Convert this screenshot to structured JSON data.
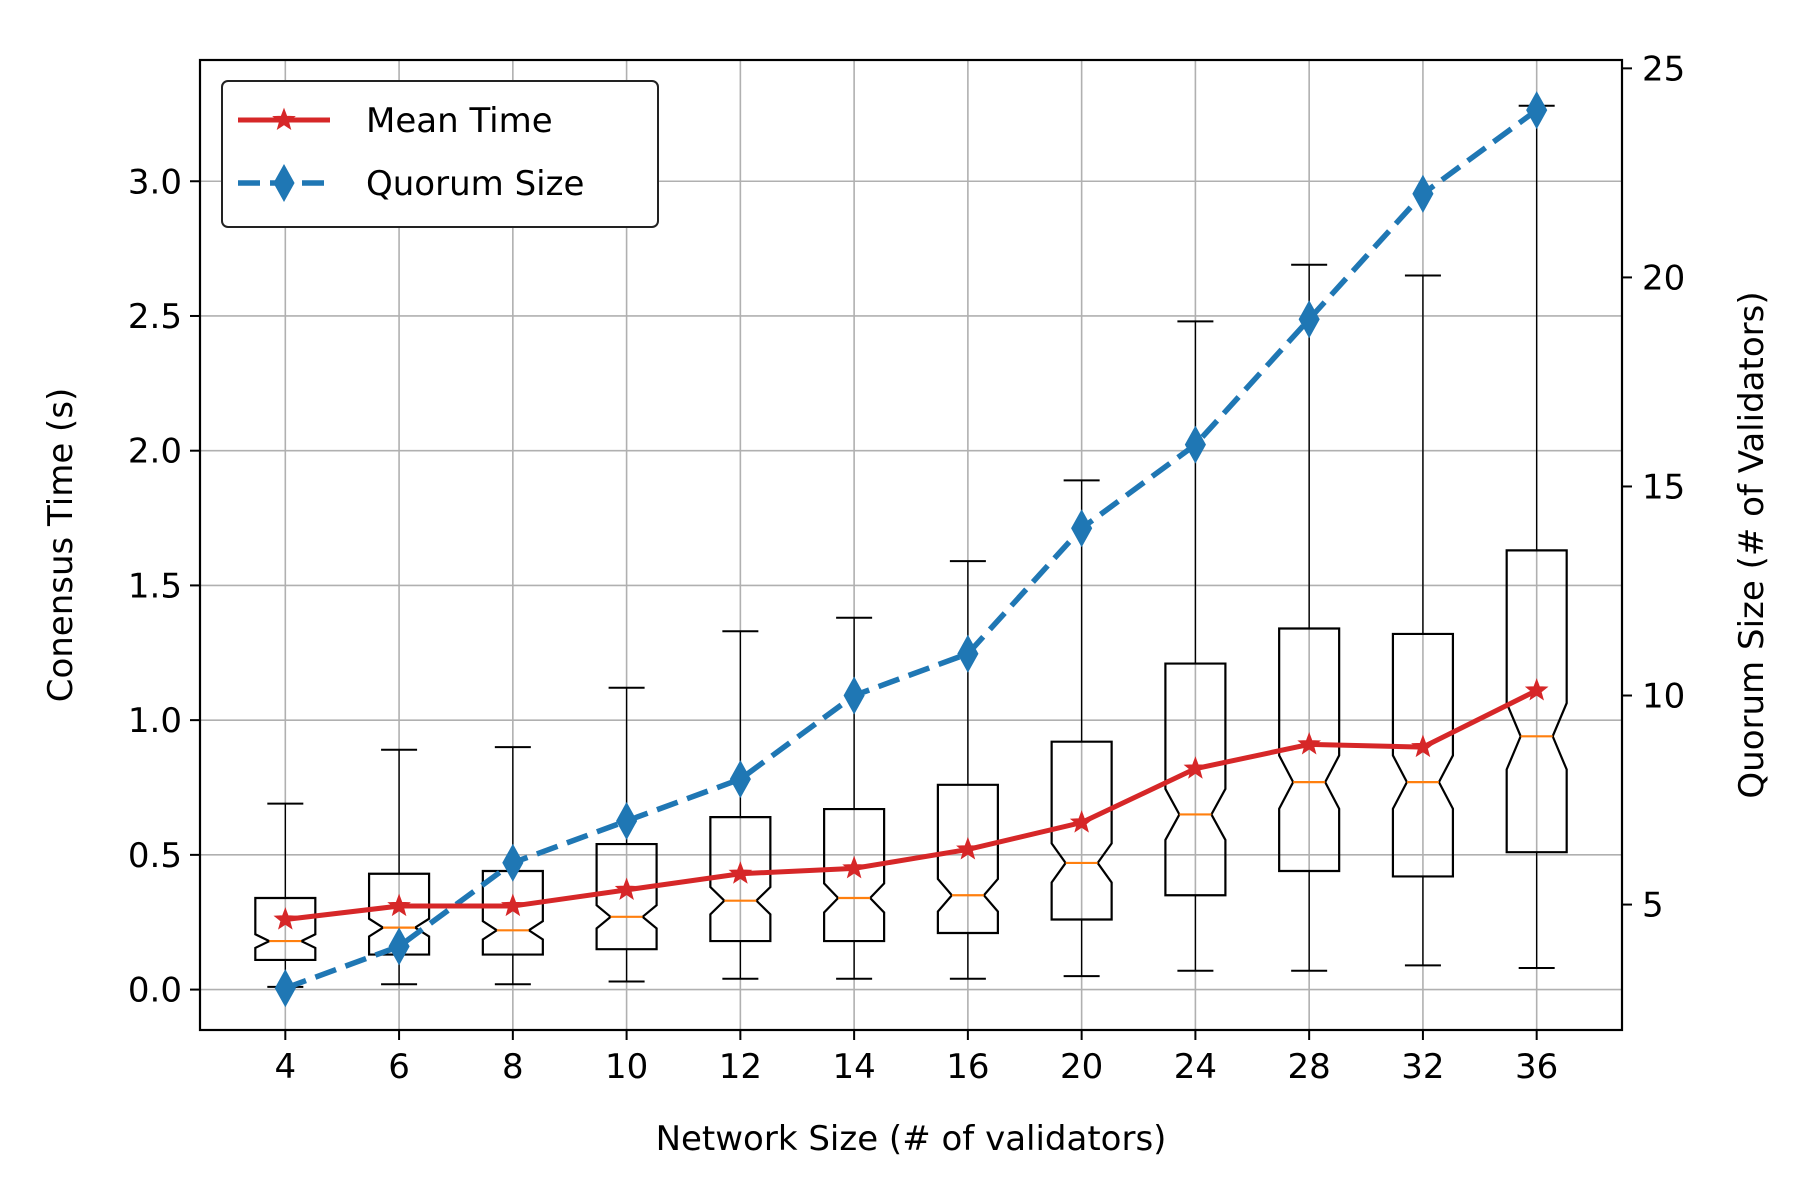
{
  "chart_data": {
    "type": "box+line",
    "categories": [
      "4",
      "6",
      "8",
      "10",
      "12",
      "14",
      "16",
      "20",
      "24",
      "28",
      "32",
      "36"
    ],
    "xlabel": "Network Size (# of validators)",
    "ylabel": "Conensus Time (s)",
    "ylabel_right": "Quorum Size (# of Validators)",
    "ylim": [
      -0.15,
      3.45
    ],
    "ylim_right": [
      2.0,
      25.2
    ],
    "yticks": [
      "0.0",
      "0.5",
      "1.0",
      "1.5",
      "2.0",
      "2.5",
      "3.0"
    ],
    "yticks_right": [
      "5",
      "10",
      "15",
      "20",
      "25"
    ],
    "grid": true,
    "legend_position": "top-left",
    "boxes": [
      {
        "whisker_low": 0.01,
        "q1": 0.11,
        "median": 0.18,
        "q3": 0.34,
        "whisker_high": 0.69
      },
      {
        "whisker_low": 0.02,
        "q1": 0.13,
        "median": 0.23,
        "q3": 0.43,
        "whisker_high": 0.89
      },
      {
        "whisker_low": 0.02,
        "q1": 0.13,
        "median": 0.22,
        "q3": 0.44,
        "whisker_high": 0.9
      },
      {
        "whisker_low": 0.03,
        "q1": 0.15,
        "median": 0.27,
        "q3": 0.54,
        "whisker_high": 1.12
      },
      {
        "whisker_low": 0.04,
        "q1": 0.18,
        "median": 0.33,
        "q3": 0.64,
        "whisker_high": 1.33
      },
      {
        "whisker_low": 0.04,
        "q1": 0.18,
        "median": 0.34,
        "q3": 0.67,
        "whisker_high": 1.38
      },
      {
        "whisker_low": 0.04,
        "q1": 0.21,
        "median": 0.35,
        "q3": 0.76,
        "whisker_high": 1.59
      },
      {
        "whisker_low": 0.05,
        "q1": 0.26,
        "median": 0.47,
        "q3": 0.92,
        "whisker_high": 1.89
      },
      {
        "whisker_low": 0.07,
        "q1": 0.35,
        "median": 0.65,
        "q3": 1.21,
        "whisker_high": 2.48
      },
      {
        "whisker_low": 0.07,
        "q1": 0.44,
        "median": 0.77,
        "q3": 1.34,
        "whisker_high": 2.69
      },
      {
        "whisker_low": 0.09,
        "q1": 0.42,
        "median": 0.77,
        "q3": 1.32,
        "whisker_high": 2.65
      },
      {
        "whisker_low": 0.08,
        "q1": 0.51,
        "median": 0.94,
        "q3": 1.63,
        "whisker_high": 3.28
      }
    ],
    "series": [
      {
        "name": "Mean Time",
        "axis": "left",
        "color": "#d62728",
        "marker": "star",
        "style": "solid",
        "values": [
          0.26,
          0.31,
          0.31,
          0.37,
          0.43,
          0.45,
          0.52,
          0.62,
          0.82,
          0.91,
          0.9,
          1.11
        ]
      },
      {
        "name": "Quorum Size",
        "axis": "right",
        "color": "#1f77b4",
        "marker": "thin-diamond",
        "style": "dashed",
        "values": [
          3,
          4,
          6,
          7,
          8,
          10,
          11,
          14,
          16,
          19,
          22,
          24
        ]
      }
    ]
  }
}
